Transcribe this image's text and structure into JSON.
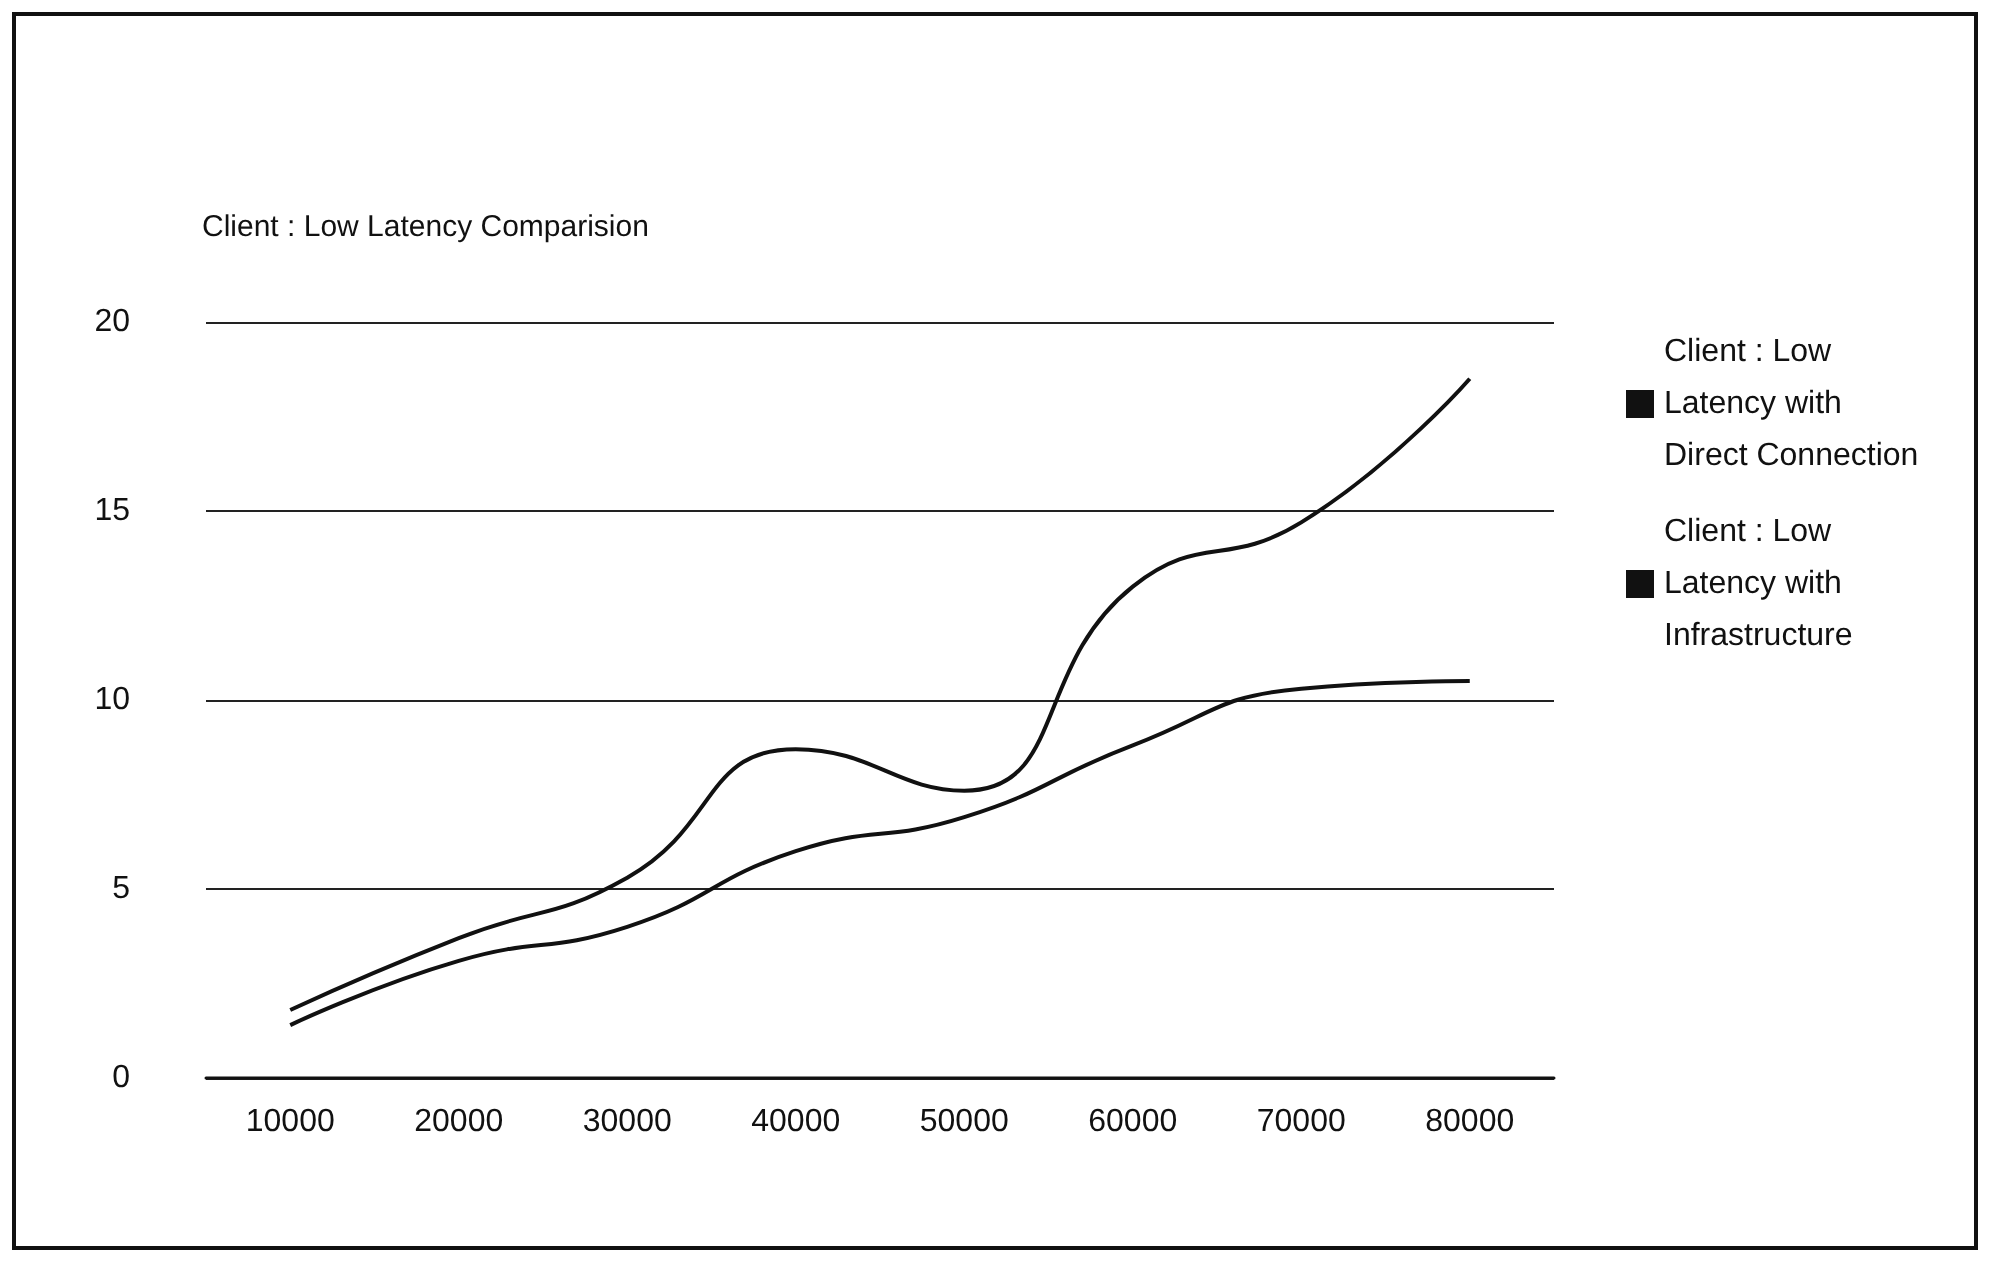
{
  "chart_data": {
    "type": "line",
    "title": "Client : Low Latency Comparision",
    "categories": [
      "10000",
      "20000",
      "30000",
      "40000",
      "50000",
      "60000",
      "70000",
      "80000"
    ],
    "series": [
      {
        "name": "Client : Low Latency with Direct Connection",
        "color": "#111111",
        "values": [
          1.8,
          3.7,
          5.3,
          8.7,
          7.6,
          13.0,
          14.7,
          18.5
        ]
      },
      {
        "name": "Client : Low Latency with Infrastructure",
        "color": "#111111",
        "values": [
          1.4,
          3.1,
          4.0,
          6.0,
          6.9,
          8.8,
          10.3,
          10.5
        ]
      }
    ],
    "ylim": [
      0,
      20
    ],
    "yticks": [
      0,
      5,
      10,
      15,
      20
    ],
    "grid": "y",
    "legend": "right",
    "marker": "none",
    "line_style": "solid"
  }
}
